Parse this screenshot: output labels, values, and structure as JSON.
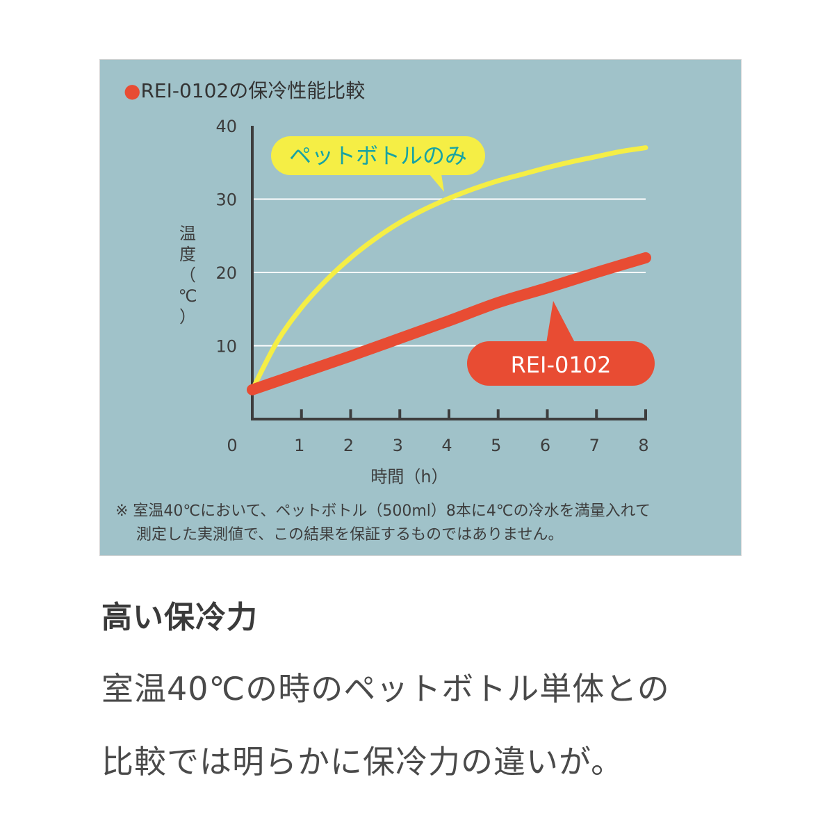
{
  "chart_data": {
    "type": "line",
    "title": "●REI-0102の保冷性能比較",
    "ylabel": [
      "温",
      "度",
      "（",
      "℃",
      "）"
    ],
    "xlabel": "時間（h）",
    "x_ticks": [
      "0",
      "1",
      "2",
      "3",
      "4",
      "5",
      "6",
      "7",
      "8"
    ],
    "y_ticks": [
      "10",
      "20",
      "30",
      "40"
    ],
    "xlim": [
      0,
      8
    ],
    "ylim": [
      0,
      40
    ],
    "grid": true,
    "series": [
      {
        "name": "ペットボトルのみ",
        "color": "#f5ee45",
        "x": [
          0,
          0.5,
          1,
          1.5,
          2,
          2.5,
          3,
          3.5,
          4,
          4.5,
          5,
          5.5,
          6,
          6.5,
          7,
          7.5,
          8
        ],
        "y": [
          4,
          10.5,
          15.2,
          18.9,
          22,
          24.6,
          26.8,
          28.6,
          30.1,
          31.4,
          32.5,
          33.4,
          34.3,
          35.1,
          35.8,
          36.5,
          37
        ]
      },
      {
        "name": "REI-0102",
        "color": "#e84c33",
        "x": [
          0,
          1,
          2,
          3,
          4,
          5,
          6,
          7,
          8
        ],
        "y": [
          4,
          6.3,
          8.6,
          11,
          13.4,
          15.9,
          17.9,
          20,
          22
        ]
      }
    ],
    "note": [
      "※ 室温40℃において、ペットボトル（500ml）8本に4℃の冷水を満量入れて",
      "測定した実測値で、この結果を保証するものではありません。"
    ],
    "colors": {
      "panel_background": "#a0c2c9",
      "axis": "#3d3d3d",
      "grid": "#ffffff",
      "title_bullet": "#e84c33",
      "yellow_label_text": "#17a3a3",
      "red_label_text": "#ffffff"
    }
  },
  "text": {
    "heading": "高い保冷力",
    "body_line_1": "室温40℃の時のペットボトル単体との",
    "body_line_2": "比較では明らかに保冷力の違いが。"
  }
}
